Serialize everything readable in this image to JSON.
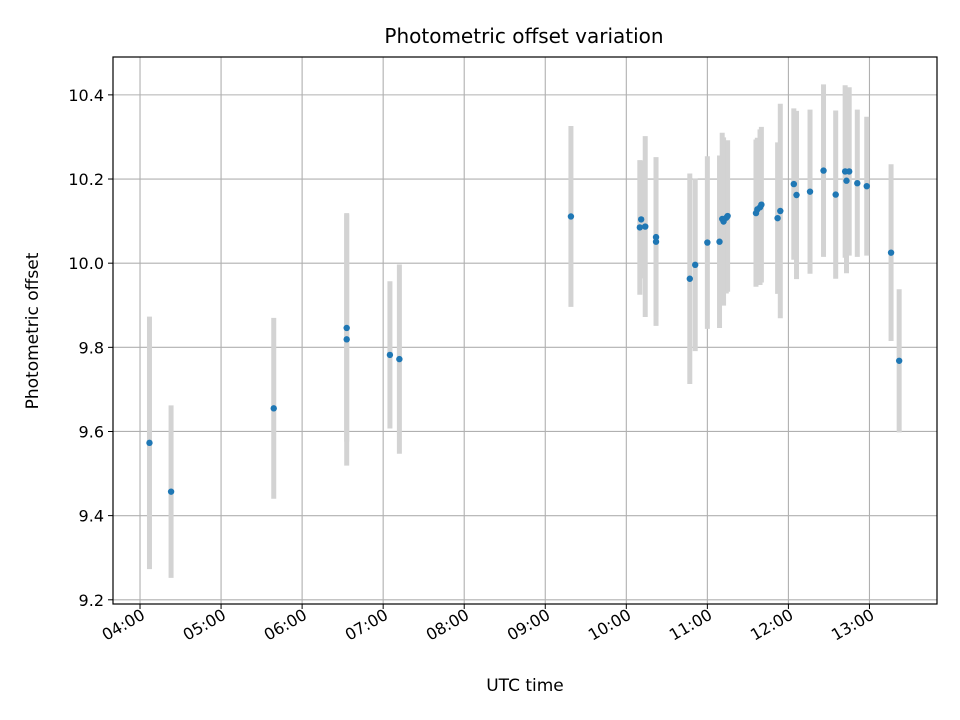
{
  "chart_data": {
    "type": "scatter",
    "title": "Photometric offset variation",
    "xlabel": "UTC time",
    "ylabel": "Photometric offset",
    "x_tick_labels": [
      "04:00",
      "05:00",
      "06:00",
      "07:00",
      "08:00",
      "09:00",
      "10:00",
      "11:00",
      "12:00",
      "13:00"
    ],
    "x_ticks_hours": [
      4,
      5,
      6,
      7,
      8,
      9,
      10,
      11,
      12,
      13
    ],
    "y_ticks": [
      9.2,
      9.4,
      9.6,
      9.8,
      10.0,
      10.2,
      10.4
    ],
    "y_tick_labels": [
      "9.2",
      "9.4",
      "9.6",
      "9.8",
      "10.0",
      "10.2",
      "10.4"
    ],
    "xlim": [
      "03:40",
      "13:50"
    ],
    "ylim": [
      9.19,
      10.49
    ],
    "grid": true,
    "colors": {
      "points": "#1f77b4",
      "errorbars": "#d3d3d3",
      "grid": "#b0b0b0"
    },
    "points": [
      {
        "time": "04:07",
        "y": 9.573,
        "err": 0.3
      },
      {
        "time": "04:23",
        "y": 9.457,
        "err": 0.205
      },
      {
        "time": "05:39",
        "y": 9.655,
        "err": 0.215
      },
      {
        "time": "06:33",
        "y": 9.846,
        "err": 0.27
      },
      {
        "time": "06:33",
        "y": 9.819,
        "err": 0.3
      },
      {
        "time": "07:05",
        "y": 9.782,
        "err": 0.175
      },
      {
        "time": "07:12",
        "y": 9.772,
        "err": 0.225
      },
      {
        "time": "09:19",
        "y": 10.111,
        "err": 0.215
      },
      {
        "time": "10:10",
        "y": 10.085,
        "err": 0.16
      },
      {
        "time": "10:11",
        "y": 10.104,
        "err": 0.14
      },
      {
        "time": "10:14",
        "y": 10.087,
        "err": 0.215
      },
      {
        "time": "10:22",
        "y": 10.062,
        "err": 0.19
      },
      {
        "time": "10:22",
        "y": 10.051,
        "err": 0.2
      },
      {
        "time": "10:47",
        "y": 9.963,
        "err": 0.25
      },
      {
        "time": "10:51",
        "y": 9.996,
        "err": 0.205
      },
      {
        "time": "11:00",
        "y": 10.049,
        "err": 0.205
      },
      {
        "time": "11:09",
        "y": 10.051,
        "err": 0.205
      },
      {
        "time": "11:11",
        "y": 10.105,
        "err": 0.205
      },
      {
        "time": "11:12",
        "y": 10.099,
        "err": 0.2
      },
      {
        "time": "11:14",
        "y": 10.108,
        "err": 0.18
      },
      {
        "time": "11:15",
        "y": 10.112,
        "err": 0.18
      },
      {
        "time": "11:36",
        "y": 10.119,
        "err": 0.175
      },
      {
        "time": "11:37",
        "y": 10.128,
        "err": 0.17
      },
      {
        "time": "11:39",
        "y": 10.133,
        "err": 0.185
      },
      {
        "time": "11:40",
        "y": 10.139,
        "err": 0.185
      },
      {
        "time": "11:52",
        "y": 10.107,
        "err": 0.18
      },
      {
        "time": "11:54",
        "y": 10.124,
        "err": 0.255
      },
      {
        "time": "12:04",
        "y": 10.188,
        "err": 0.18
      },
      {
        "time": "12:06",
        "y": 10.162,
        "err": 0.2
      },
      {
        "time": "12:16",
        "y": 10.17,
        "err": 0.195
      },
      {
        "time": "12:26",
        "y": 10.22,
        "err": 0.205
      },
      {
        "time": "12:35",
        "y": 10.163,
        "err": 0.2
      },
      {
        "time": "12:42",
        "y": 10.218,
        "err": 0.205
      },
      {
        "time": "12:43",
        "y": 10.196,
        "err": 0.22
      },
      {
        "time": "12:45",
        "y": 10.218,
        "err": 0.2
      },
      {
        "time": "12:51",
        "y": 10.19,
        "err": 0.175
      },
      {
        "time": "12:58",
        "y": 10.183,
        "err": 0.165
      },
      {
        "time": "13:16",
        "y": 10.025,
        "err": 0.21
      },
      {
        "time": "13:22",
        "y": 9.768,
        "err": 0.17
      }
    ]
  }
}
